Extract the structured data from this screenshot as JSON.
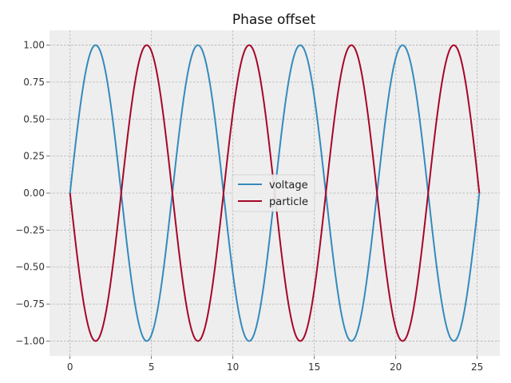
{
  "chart_data": {
    "type": "line",
    "title": "Phase offset",
    "xlabel": "",
    "ylabel": "",
    "xlim": [
      -1.26,
      26.39
    ],
    "ylim": [
      -1.1,
      1.1
    ],
    "xticks": [
      0,
      5,
      10,
      15,
      20,
      25
    ],
    "xtick_labels": [
      "0",
      "5",
      "10",
      "15",
      "20",
      "25"
    ],
    "yticks": [
      1.0,
      0.75,
      0.5,
      0.25,
      0.0,
      -0.25,
      -0.5,
      -0.75,
      -1.0
    ],
    "ytick_labels": [
      "1.00",
      "0.75",
      "0.50",
      "0.25",
      "0.00",
      "−0.25",
      "−0.50",
      "−0.75",
      "−1.00"
    ],
    "grid": true,
    "legend_position": "center",
    "background": "#eeeeee",
    "x_range": [
      0,
      25.13
    ],
    "series": [
      {
        "name": "voltage",
        "color": "#348abd",
        "x": [
          0,
          1.571,
          3.142,
          4.712,
          6.283,
          7.854,
          9.425,
          10.996,
          12.566,
          14.137,
          15.708,
          17.279,
          18.85,
          20.42,
          21.991,
          23.562,
          25.133
        ],
        "y": [
          0,
          1,
          0,
          -1,
          0,
          1,
          0,
          -1,
          0,
          1,
          0,
          -1,
          0,
          1,
          0,
          -1,
          0
        ]
      },
      {
        "name": "particle",
        "color": "#a60628",
        "x": [
          0,
          1.571,
          3.142,
          4.712,
          6.283,
          7.854,
          9.425,
          10.996,
          12.566,
          14.137,
          15.708,
          17.279,
          18.85,
          20.42,
          21.991,
          23.562,
          25.133
        ],
        "y": [
          0,
          -1,
          0,
          1,
          0,
          -1,
          0,
          1,
          0,
          -1,
          0,
          1,
          0,
          -1,
          0,
          1,
          0
        ]
      }
    ]
  }
}
